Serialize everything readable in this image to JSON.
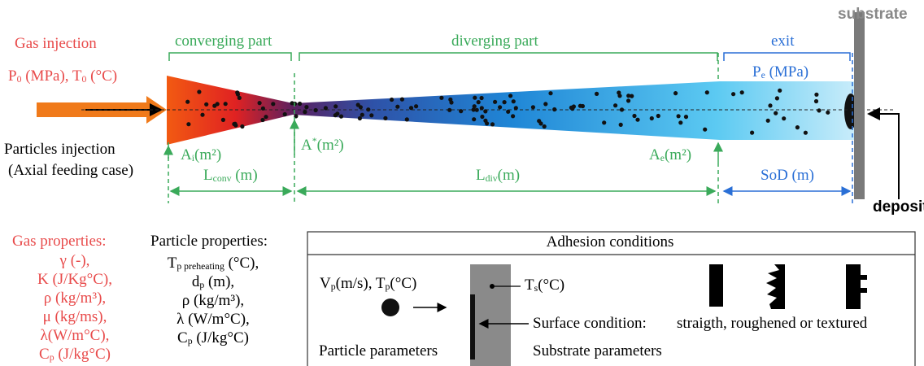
{
  "header": {
    "gas_injection": [
      "Gas injection"
    ],
    "gas_conditions": [
      "P",
      {
        "sub": "0"
      },
      " (MPa), T",
      {
        "sub": "0"
      },
      " (°C)"
    ],
    "particles_injection": [
      "Particles injection"
    ],
    "feeding_case": [
      "(Axial feeding case)"
    ]
  },
  "nozzle": {
    "converging_part": [
      "converging part"
    ],
    "diverging_part": [
      "diverging part"
    ],
    "exit": [
      "exit"
    ],
    "substrate": [
      "substrate"
    ],
    "exit_pressure": [
      "P",
      {
        "sub": "e"
      },
      " (MPa)"
    ],
    "inlet_area": [
      "A",
      {
        "sub": "i"
      },
      "(m²)"
    ],
    "throat_area": [
      "A",
      {
        "sup": "*"
      },
      "(m²)"
    ],
    "exit_area": [
      "A",
      {
        "sub": "e"
      },
      "(m²)"
    ],
    "converging_length": [
      "L",
      {
        "sub": "conv"
      },
      " (m)"
    ],
    "diverging_length": [
      "L",
      {
        "sub": "div"
      },
      "(m)"
    ],
    "standoff_distance": [
      "SoD (m)"
    ],
    "deposit": [
      "deposit"
    ]
  },
  "gas_properties": {
    "title": [
      "Gas properties:"
    ],
    "items": [
      [
        "γ (-),"
      ],
      [
        "K (J/Kg°C),"
      ],
      [
        "ρ (kg/m³),"
      ],
      [
        "μ (kg/ms),"
      ],
      [
        "λ(W/m°C),"
      ],
      [
        "C",
        {
          "sub": "p"
        },
        " (J/kg°C)"
      ]
    ]
  },
  "particle_properties": {
    "title": [
      "Particle properties:"
    ],
    "items": [
      [
        "T",
        {
          "sub": "p preheating"
        },
        " (°C),"
      ],
      [
        "d",
        {
          "sub": "p"
        },
        " (m),"
      ],
      [
        "ρ (kg/m³),"
      ],
      [
        "λ (W/m°C),"
      ],
      [
        "C",
        {
          "sub": "p"
        },
        " (J/kg°C)"
      ]
    ]
  },
  "adhesion": {
    "title": [
      "Adhesion conditions"
    ],
    "particle_state": [
      "V",
      {
        "sub": "p"
      },
      "(m/s), T",
      {
        "sub": "p"
      },
      "(°C)"
    ],
    "surface_temperature": [
      "T",
      {
        "sub": "s"
      },
      "(°C)"
    ],
    "surface_condition": [
      "Surface condition:"
    ],
    "surface_types": [
      "straigth, roughened or textured"
    ],
    "particle_parameters": [
      "Particle parameters"
    ],
    "substrate_parameters": [
      "Substrate parameters"
    ]
  }
}
